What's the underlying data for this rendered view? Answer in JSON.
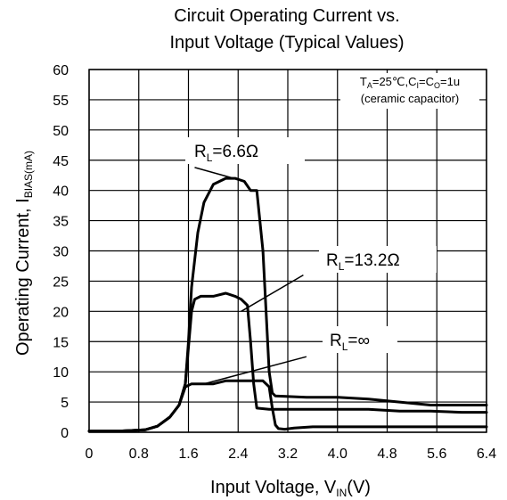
{
  "chart_data": {
    "type": "line",
    "title": [
      "Circuit Operating Current vs.",
      "Input Voltage (Typical Values)"
    ],
    "xlabel": {
      "main": "Input Voltage, V",
      "sub": "IN",
      "unit": "(V)"
    },
    "ylabel": {
      "main": "Operating Current, I",
      "sub": "BIAS(mA)"
    },
    "xlim": [
      0,
      6.4
    ],
    "ylim": [
      0,
      60
    ],
    "xticks": [
      0,
      0.8,
      1.6,
      2.4,
      3.2,
      4.0,
      4.8,
      5.6,
      6.4
    ],
    "xtick_labels": [
      "0",
      "0.8",
      "1.6",
      "2.4",
      "3.2",
      "4.0",
      "4.8",
      "5.6",
      "6.4"
    ],
    "yticks": [
      0,
      5,
      10,
      15,
      20,
      25,
      30,
      35,
      40,
      45,
      50,
      55,
      60
    ],
    "grid": true,
    "conditions": {
      "line1": {
        "t": "T",
        "t_sub": "A",
        "t_val": "=25℃,C",
        "ci_sub": "I",
        "eq": "=C",
        "co_sub": "O",
        "co_val": "=1u"
      },
      "line2": "(ceramic capacitor)"
    },
    "series": [
      {
        "name": {
          "prefix": "R",
          "sub": "L",
          "suffix": "=6.6Ω"
        },
        "x": [
          0,
          0.5,
          0.9,
          1.1,
          1.3,
          1.45,
          1.55,
          1.6,
          1.65,
          1.75,
          1.85,
          2.0,
          2.2,
          2.35,
          2.5,
          2.6,
          2.7,
          2.8,
          2.85,
          2.9,
          2.95,
          3.0,
          3.5,
          4.0,
          4.5,
          5.0,
          5.5,
          6.0,
          6.4
        ],
        "y": [
          0.2,
          0.2,
          0.4,
          1.0,
          2.5,
          4.5,
          8.0,
          15.0,
          24.0,
          33.0,
          38.0,
          41.0,
          42.0,
          42.0,
          41.5,
          40.0,
          40.0,
          30.0,
          20.0,
          10.0,
          6.5,
          6.0,
          5.8,
          5.8,
          5.5,
          5.0,
          4.5,
          4.5,
          4.5
        ]
      },
      {
        "name": {
          "prefix": "R",
          "sub": "L",
          "suffix": "=13.2Ω"
        },
        "x": [
          0,
          0.5,
          0.9,
          1.1,
          1.3,
          1.45,
          1.55,
          1.6,
          1.65,
          1.7,
          1.8,
          2.0,
          2.2,
          2.35,
          2.45,
          2.55,
          2.6,
          2.65,
          2.7,
          2.9,
          3.2,
          3.6,
          4.0,
          4.5,
          5.0,
          5.5,
          6.0,
          6.4
        ],
        "y": [
          0.2,
          0.2,
          0.4,
          1.0,
          2.5,
          4.5,
          8.0,
          14.0,
          20.0,
          22.0,
          22.5,
          22.5,
          23.0,
          22.5,
          22.0,
          21.0,
          15.0,
          8.0,
          4.0,
          3.8,
          3.8,
          3.8,
          3.8,
          3.8,
          3.5,
          3.5,
          3.3,
          3.3
        ]
      },
      {
        "name": {
          "prefix": "R",
          "sub": "L",
          "suffix": "=∞"
        },
        "x": [
          0,
          0.5,
          0.9,
          1.1,
          1.3,
          1.45,
          1.55,
          1.65,
          1.8,
          2.0,
          2.2,
          2.4,
          2.6,
          2.8,
          2.9,
          2.95,
          3.0,
          3.05,
          3.15,
          3.3,
          3.6,
          4.0,
          4.5,
          5.0,
          5.5,
          6.0,
          6.4
        ],
        "y": [
          0.2,
          0.2,
          0.4,
          1.0,
          2.5,
          4.5,
          7.5,
          8.0,
          8.0,
          8.0,
          8.5,
          8.5,
          8.5,
          8.5,
          7.5,
          4.0,
          1.2,
          0.6,
          0.5,
          0.7,
          0.9,
          0.9,
          0.9,
          0.9,
          0.9,
          0.9,
          0.9
        ]
      }
    ],
    "annotations": [
      {
        "series": 0,
        "at": [
          2.4,
          41.8
        ],
        "text_at": [
          1.7,
          43.8
        ]
      },
      {
        "series": 1,
        "at": [
          2.45,
          20.0
        ],
        "text_at": [
          3.45,
          26.0
        ]
      },
      {
        "series": 2,
        "at": [
          1.85,
          8.0
        ],
        "text_at": [
          3.5,
          12.5
        ]
      }
    ]
  }
}
